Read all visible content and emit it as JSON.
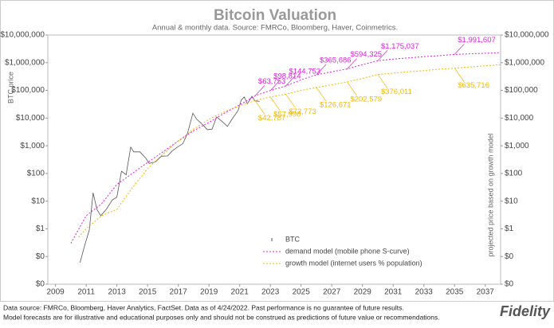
{
  "chart_data": {
    "type": "line",
    "title": "Bitcoin Valuation",
    "subtitle": "Annual & monthly data.  Source: FMRCo, Bloomberg, Haver, Coinmetrics.",
    "y_label": "BTC price",
    "y2_label": "projected price based on growth model",
    "log_y": true,
    "xlim": [
      2008.5,
      2038
    ],
    "xticks": [
      2009,
      2011,
      2013,
      2015,
      2017,
      2019,
      2021,
      2023,
      2025,
      2027,
      2029,
      2031,
      2033,
      2035,
      2037
    ],
    "ylim": [
      0.01,
      10000000
    ],
    "yticks": [
      {
        "value": 0.01,
        "label": "$0"
      },
      {
        "value": 0.1,
        "label": "$0"
      },
      {
        "value": 1,
        "label": "$1"
      },
      {
        "value": 10,
        "label": "$10"
      },
      {
        "value": 100,
        "label": "$100"
      },
      {
        "value": 1000,
        "label": "$1,000"
      },
      {
        "value": 10000,
        "label": "$10,000"
      },
      {
        "value": 100000,
        "label": "$100,000"
      },
      {
        "value": 1000000,
        "label": "$1,000,000"
      },
      {
        "value": 10000000,
        "label": "$10,000,000"
      }
    ],
    "y2lim": [
      0.01,
      10000000
    ],
    "y2ticks": [
      {
        "value": 0.01,
        "label": "$0"
      },
      {
        "value": 0.1,
        "label": "$0"
      },
      {
        "value": 1,
        "label": "$1"
      },
      {
        "value": 10,
        "label": "$10"
      },
      {
        "value": 100,
        "label": "$100"
      },
      {
        "value": 1000,
        "label": "$1,000"
      },
      {
        "value": 10000,
        "label": "$10,000"
      },
      {
        "value": 100000,
        "label": "$100,000"
      },
      {
        "value": 1000000,
        "label": "$1,000,000"
      },
      {
        "value": 10000000,
        "label": "$10,000,000"
      }
    ],
    "legend": "lower center",
    "series": [
      {
        "name": "BTC",
        "color": "#555555",
        "dash": "none",
        "x": [
          2010.6,
          2010.9,
          2011.2,
          2011.45,
          2011.7,
          2011.95,
          2012.3,
          2012.7,
          2013.0,
          2013.3,
          2013.6,
          2013.9,
          2014.1,
          2014.5,
          2014.9,
          2015.1,
          2015.5,
          2015.9,
          2016.3,
          2016.6,
          2016.95,
          2017.3,
          2017.6,
          2017.95,
          2018.2,
          2018.5,
          2018.9,
          2019.2,
          2019.5,
          2019.9,
          2020.2,
          2020.5,
          2020.9,
          2021.1,
          2021.3,
          2021.5,
          2021.8,
          2022.0,
          2022.3
        ],
        "values": [
          0.06,
          0.25,
          0.9,
          20,
          5,
          3,
          5,
          11,
          14,
          120,
          90,
          900,
          600,
          600,
          350,
          230,
          260,
          420,
          430,
          650,
          900,
          1200,
          2800,
          15000,
          9000,
          6500,
          3800,
          4000,
          11000,
          7200,
          5000,
          9200,
          19000,
          45000,
          58000,
          33000,
          61000,
          42000,
          40000
        ]
      },
      {
        "name": "demand model (mobile phone S-curve)",
        "color": "#e020e0",
        "dash": "2 2",
        "x": [
          2010,
          2011,
          2012,
          2013,
          2014,
          2015,
          2016,
          2017,
          2018,
          2019,
          2020,
          2021,
          2022,
          2023,
          2024,
          2025,
          2026,
          2027,
          2028,
          2029,
          2030,
          2031,
          2032,
          2033,
          2034,
          2035,
          2036,
          2037,
          2038
        ],
        "values": [
          0.3,
          3,
          8,
          40,
          100,
          250,
          600,
          1500,
          3500,
          7000,
          15000,
          30000,
          63753,
          98814,
          144753,
          240000,
          365686,
          470000,
          594325,
          850000,
          1175037,
          1350000,
          1500000,
          1650000,
          1800000,
          1991607,
          2100000,
          2200000,
          2300000
        ],
        "value_labels": [
          null,
          null,
          null,
          null,
          null,
          null,
          null,
          null,
          null,
          null,
          null,
          null,
          "$63,753",
          "$98,814",
          "$144,753",
          null,
          "$365,686",
          null,
          "$594,325",
          null,
          "$1,175,037",
          null,
          null,
          null,
          null,
          "$1,991,607",
          null,
          null,
          null
        ]
      },
      {
        "name": "growth model (internet users % population)",
        "color": "#f5b800",
        "dash": "2 2",
        "x": [
          2010.5,
          2011,
          2012,
          2013,
          2014,
          2015,
          2016,
          2017,
          2018,
          2019,
          2020,
          2021,
          2022,
          2023,
          2024,
          2025,
          2026,
          2027,
          2028,
          2029,
          2030,
          2031,
          2032,
          2033,
          2034,
          2035,
          2036,
          2037,
          2038
        ],
        "values": [
          0.5,
          1,
          3,
          5,
          30,
          150,
          500,
          1500,
          4000,
          9000,
          17000,
          28000,
          42787,
          57990,
          72773,
          100000,
          126671,
          160000,
          202579,
          270000,
          376011,
          420000,
          470000,
          520000,
          580000,
          635716,
          700000,
          770000,
          850000
        ],
        "value_labels": [
          null,
          null,
          null,
          null,
          null,
          null,
          null,
          null,
          null,
          null,
          null,
          null,
          "$42,787",
          "$57,990",
          "$72,773",
          null,
          "$126,671",
          null,
          "$202,579",
          null,
          "$376,011",
          null,
          null,
          null,
          null,
          "$635,716",
          null,
          null,
          null
        ]
      }
    ]
  },
  "footnote": [
    "Data source: FMRCo, Bloomberg, Haver Analytics, FactSet. Data as of 4/24/2022. Past performance is no guarantee of future results.",
    "Model forecasts are for illustrative and educational purposes only and should not be construed as predictions of future value or recommendations."
  ],
  "logo": "Fidelity"
}
